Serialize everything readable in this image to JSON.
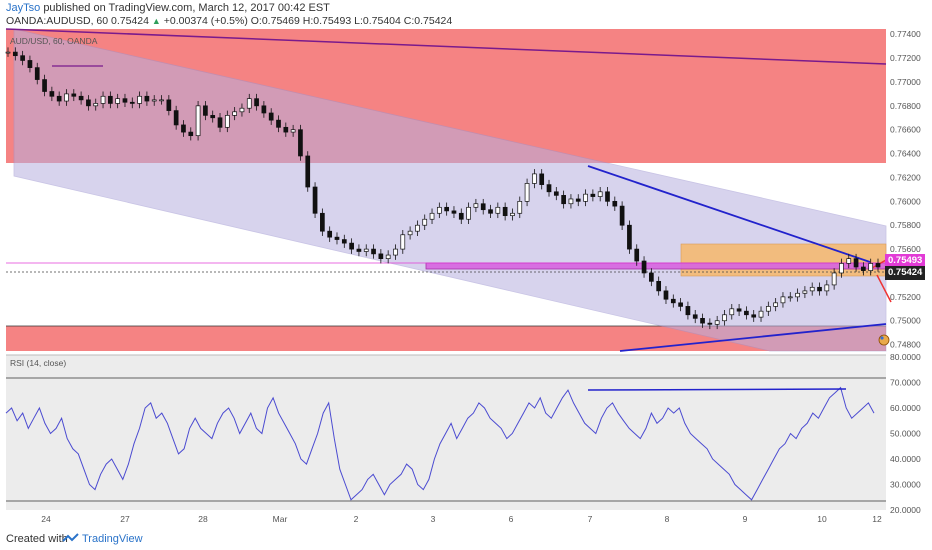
{
  "header": {
    "author": "JayTso",
    "published_text": "published on TradingView.com, March 12, 2017 00:42 EST",
    "symbol": "OANDA:AUDUSD, 60",
    "last": "0.75424",
    "change": "+0.00374 (+0.5%)",
    "open_label": "O:",
    "open": "0.75469",
    "high_label": "H:",
    "high": "0.75493",
    "low_label": "L:",
    "low": "0.75404",
    "close_label": "C:",
    "close": "0.75424"
  },
  "legend": {
    "symbol": "AUD/USD, 60, OANDA"
  },
  "indicator": {
    "label": "RSI (14, close)"
  },
  "price_badges": {
    "high": "0.75493",
    "last": "0.75424"
  },
  "footer": {
    "created_with": "Created with",
    "brand": "TradingView"
  },
  "colors": {
    "resistance_zone": "#f47c7c",
    "channel": "#b7b0e0",
    "supply_box": "#f7b96b",
    "trendline": "#2222cc",
    "candle": "#111111",
    "rsi_line": "#4b4bd1"
  },
  "chart_data": [
    {
      "type": "candlestick",
      "title": "AUD/USD, 60, OANDA",
      "ylim": [
        0.7478,
        0.7741
      ],
      "y_ticks": [
        "0.77400",
        "0.77200",
        "0.77000",
        "0.76800",
        "0.76600",
        "0.76400",
        "0.76200",
        "0.76000",
        "0.75800",
        "0.75600",
        "0.75400",
        "0.75200",
        "0.75000",
        "0.74800"
      ],
      "x_ticks": [
        "24",
        "27",
        "28",
        "Mar",
        "2",
        "3",
        "6",
        "7",
        "8",
        "9",
        "10",
        "12"
      ],
      "approx_close_path": [
        [
          0.7725,
          0.7722,
          0.7718,
          0.7712,
          0.7702,
          0.7692,
          0.7688,
          0.7684,
          0.769,
          0.7688,
          0.7685,
          0.768,
          0.7682,
          0.7688,
          0.7682,
          0.7686,
          0.7683,
          0.7682,
          0.7688,
          0.7684,
          0.7685,
          0.7685,
          0.7676,
          0.7664,
          0.7658,
          0.7655,
          0.768,
          0.7672,
          0.767,
          0.7662,
          0.7672,
          0.7675,
          0.7678,
          0.7686,
          0.768,
          0.7674,
          0.7668,
          0.7662,
          0.7658,
          0.766,
          0.7638,
          0.7612,
          0.759,
          0.7575,
          0.757,
          0.7568,
          0.7565,
          0.756,
          0.7558,
          0.756,
          0.7556,
          0.7552,
          0.7555,
          0.756,
          0.7572,
          0.7575,
          0.758,
          0.7585,
          0.759,
          0.7595,
          0.7592,
          0.759,
          0.7585,
          0.7595,
          0.7598,
          0.7593,
          0.759,
          0.7595,
          0.7588,
          0.759,
          0.76,
          0.7615,
          0.7623,
          0.7614,
          0.7608,
          0.7605,
          0.7598,
          0.7602,
          0.76,
          0.7606,
          0.7604,
          0.7608,
          0.76,
          0.7596,
          0.758,
          0.756,
          0.755,
          0.754,
          0.7533,
          0.7525,
          0.7518,
          0.7515,
          0.7512,
          0.7505,
          0.7502,
          0.7498,
          0.7497,
          0.75,
          0.7505,
          0.751,
          0.7508,
          0.7505,
          0.7503,
          0.7508,
          0.7512,
          0.7515,
          0.752,
          0.752,
          0.7523,
          0.7525,
          0.7528,
          0.7525,
          0.753,
          0.754,
          0.7548,
          0.7552,
          0.7545,
          0.7542,
          0.7548,
          0.7545
        ]
      ],
      "zones": [
        {
          "name": "resistance",
          "from": 0.7634,
          "to": 0.7741
        },
        {
          "name": "support",
          "from": 0.7478,
          "to": 0.7496
        },
        {
          "name": "supply",
          "from": 0.7542,
          "to": 0.7564
        }
      ],
      "horizontal_lines": [
        0.75493,
        0.75424
      ]
    },
    {
      "type": "line",
      "title": "RSI (14, close)",
      "ylim": [
        20,
        80
      ],
      "y_ticks": [
        "80.0000",
        "70.0000",
        "60.0000",
        "50.0000",
        "40.0000",
        "30.0000",
        "20.0000"
      ],
      "values": [
        58,
        60,
        55,
        58,
        52,
        56,
        60,
        54,
        50,
        52,
        56,
        48,
        44,
        42,
        36,
        30,
        28,
        34,
        38,
        40,
        36,
        32,
        38,
        46,
        52,
        60,
        62,
        56,
        58,
        54,
        48,
        42,
        44,
        52,
        56,
        52,
        50,
        48,
        54,
        58,
        60,
        56,
        50,
        54,
        58,
        52,
        50,
        60,
        64,
        58,
        54,
        50,
        46,
        40,
        38,
        44,
        50,
        58,
        62,
        48,
        36,
        30,
        24,
        26,
        28,
        32,
        34,
        30,
        26,
        30,
        32,
        34,
        38,
        36,
        30,
        28,
        32,
        40,
        46,
        50,
        54,
        48,
        52,
        56,
        58,
        62,
        60,
        56,
        54,
        52,
        48,
        50,
        54,
        58,
        62,
        60,
        64,
        58,
        56,
        60,
        64,
        67,
        62,
        58,
        54,
        52,
        50,
        56,
        60,
        62,
        58,
        55,
        52,
        50,
        48,
        52,
        58,
        54,
        56,
        60,
        58,
        60,
        54,
        50,
        48,
        46,
        44,
        40,
        38,
        36,
        34,
        30,
        28,
        26,
        24,
        28,
        32,
        36,
        40,
        44,
        46,
        50,
        48,
        52,
        54,
        58,
        56,
        60,
        64,
        66,
        68,
        60,
        56,
        58,
        60,
        62,
        58
      ]
    }
  ]
}
